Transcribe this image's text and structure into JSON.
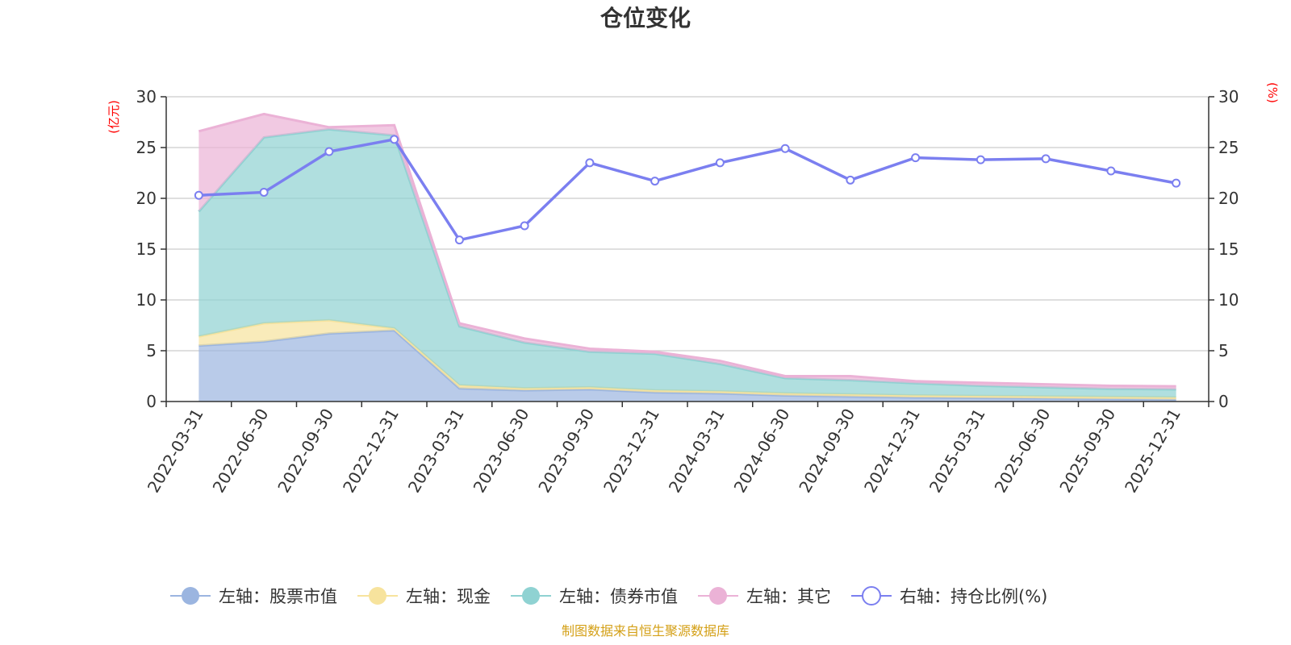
{
  "chart_data": {
    "type": "area",
    "title": "仓位变化",
    "left_unit": "(亿元)",
    "right_unit": "(%)",
    "source_note": "制图数据来自恒生聚源数据库",
    "categories": [
      "2022-03-31",
      "2022-06-30",
      "2022-09-30",
      "2022-12-31",
      "2023-03-31",
      "2023-06-30",
      "2023-09-30",
      "2023-12-31",
      "2024-03-31",
      "2024-06-30",
      "2024-09-30",
      "2024-12-31",
      "2025-03-31",
      "2025-06-30",
      "2025-09-30",
      "2025-12-31"
    ],
    "left_axis": {
      "min": 0,
      "max": 30,
      "ticks": [
        "0",
        "5",
        "10",
        "15",
        "20",
        "25",
        "30"
      ]
    },
    "right_axis": {
      "min": 0,
      "max": 30,
      "ticks": [
        "0",
        "5",
        "10",
        "15",
        "20",
        "25",
        "30"
      ]
    },
    "grid": true,
    "legend_position": "bottom",
    "stacked_series": [
      {
        "name": "左轴：股票市值",
        "color": "#9bb5e0",
        "values": [
          5.5,
          5.9,
          6.7,
          7.0,
          1.3,
          1.1,
          1.2,
          0.9,
          0.8,
          0.6,
          0.5,
          0.4,
          0.35,
          0.3,
          0.25,
          0.2
        ]
      },
      {
        "name": "左轴：现金",
        "color": "#f7e39d",
        "values": [
          0.9,
          1.8,
          1.3,
          0.2,
          0.3,
          0.2,
          0.2,
          0.2,
          0.2,
          0.2,
          0.2,
          0.2,
          0.2,
          0.2,
          0.2,
          0.2
        ]
      },
      {
        "name": "左轴：债券市值",
        "color": "#8fd2d2",
        "values": [
          12.3,
          18.3,
          18.8,
          19.0,
          5.8,
          4.5,
          3.5,
          3.6,
          2.7,
          1.5,
          1.4,
          1.2,
          1.0,
          0.9,
          0.8,
          0.8
        ]
      },
      {
        "name": "左轴：其它",
        "color": "#ebb2d6",
        "values": [
          7.9,
          2.3,
          0.2,
          1.0,
          0.3,
          0.4,
          0.3,
          0.2,
          0.3,
          0.2,
          0.4,
          0.2,
          0.3,
          0.3,
          0.3,
          0.3
        ]
      }
    ],
    "line_series": {
      "name": "右轴：持仓比例(%)",
      "color": "#7b7ff0",
      "values": [
        20.3,
        20.6,
        24.6,
        25.8,
        15.9,
        17.3,
        23.5,
        21.7,
        23.5,
        24.9,
        21.8,
        24.0,
        23.8,
        23.9,
        22.7,
        21.5
      ]
    }
  }
}
